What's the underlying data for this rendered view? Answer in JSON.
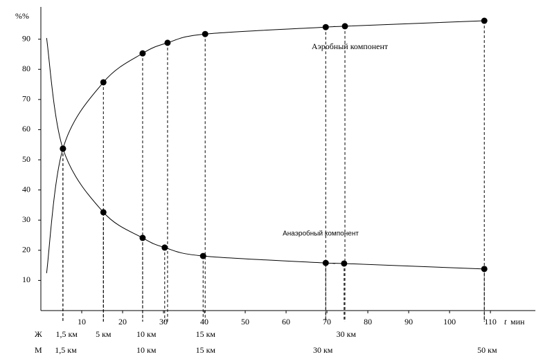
{
  "chart_data": {
    "type": "line",
    "ylabel": "%%",
    "xlabel_var": "t",
    "xlabel": "мин",
    "xlim": [
      0,
      121
    ],
    "ylim": [
      0,
      100.7
    ],
    "xticks": [
      10,
      20,
      30,
      40,
      50,
      60,
      70,
      80,
      90,
      100,
      110
    ],
    "yticks": [
      10,
      20,
      30,
      40,
      50,
      60,
      70,
      80,
      90
    ],
    "color": "#000000",
    "series": [
      {
        "annotation": "Аэробный компонент",
        "line": {
          "x": [
            1.4,
            5.4,
            15.3,
            24.9,
            31,
            40.2,
            69.7,
            74.4,
            108.5
          ],
          "values": [
            12.4,
            53.7,
            75.7,
            85.3,
            88.8,
            91.7,
            94,
            94.3,
            96.1
          ]
        },
        "points": {
          "x": [
            5.4,
            15.3,
            24.9,
            31,
            40.2,
            69.7,
            74.4,
            108.5
          ],
          "values": [
            53.7,
            75.7,
            85.3,
            88.8,
            91.7,
            94,
            94.3,
            96.1
          ]
        }
      },
      {
        "annotation": "Анаэробный компонент",
        "line": {
          "x": [
            1.4,
            5.4,
            15.3,
            24.9,
            30.3,
            39.7,
            69.7,
            74.2,
            108.5
          ],
          "values": [
            90.4,
            53.7,
            32.6,
            24.1,
            20.9,
            18.1,
            15.8,
            15.6,
            13.8
          ]
        },
        "points": {
          "x": [
            5.4,
            15.3,
            24.9,
            30.3,
            39.7,
            69.7,
            74.2,
            108.5
          ],
          "values": [
            53.7,
            32.6,
            24.1,
            20.9,
            18.1,
            15.8,
            15.6,
            13.8
          ]
        }
      }
    ],
    "distance_rows": [
      {
        "label": "Ж",
        "items": [
          {
            "text": "1,5 км",
            "x": 6.3
          },
          {
            "text": "5 км",
            "x": 15.3
          },
          {
            "text": "10 км",
            "x": 25.8
          },
          {
            "text": "15 км",
            "x": 40.3
          },
          {
            "text": "30 км",
            "x": 74.7
          }
        ]
      },
      {
        "label": "М",
        "items": [
          {
            "text": "1,5 км",
            "x": 6.1
          },
          {
            "text": "10 км",
            "x": 25.8
          },
          {
            "text": "15 км",
            "x": 40.3
          },
          {
            "text": "30 км",
            "x": 69
          },
          {
            "text": "50 км",
            "x": 109.2
          }
        ]
      }
    ]
  }
}
